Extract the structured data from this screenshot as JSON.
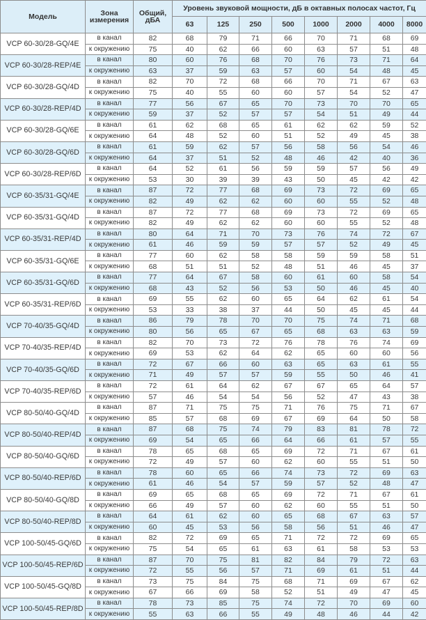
{
  "header": {
    "model": "Модель",
    "zone": "Зона измерения",
    "total": "Общий, дБА",
    "octave_title": "Уровень звуковой мощности, дБ в октавных полосах частот, Гц",
    "frequencies": [
      "63",
      "125",
      "250",
      "500",
      "1000",
      "2000",
      "4000",
      "8000"
    ]
  },
  "zones": {
    "duct": "в канал",
    "env": "к окружению"
  },
  "colors": {
    "header_bg": "#dceef8",
    "shaded_bg": "#dff1fb",
    "border": "#8c8c8c"
  },
  "rows": [
    {
      "model": "VCP 60-30/28-GQ/4E",
      "shaded": false,
      "duct": [
        "82",
        "68",
        "79",
        "71",
        "66",
        "70",
        "71",
        "68",
        "69"
      ],
      "env": [
        "75",
        "40",
        "62",
        "66",
        "60",
        "63",
        "57",
        "51",
        "48"
      ]
    },
    {
      "model": "VCP 60-30/28-REP/4E",
      "shaded": true,
      "duct": [
        "80",
        "60",
        "76",
        "68",
        "70",
        "76",
        "73",
        "71",
        "64"
      ],
      "env": [
        "63",
        "37",
        "59",
        "63",
        "57",
        "60",
        "54",
        "48",
        "45"
      ]
    },
    {
      "model": "VCP 60-30/28-GQ/4D",
      "shaded": false,
      "duct": [
        "82",
        "70",
        "72",
        "68",
        "66",
        "70",
        "71",
        "67",
        "63"
      ],
      "env": [
        "75",
        "40",
        "55",
        "60",
        "60",
        "57",
        "54",
        "52",
        "47"
      ]
    },
    {
      "model": "VCP 60-30/28-REP/4D",
      "shaded": true,
      "duct": [
        "77",
        "56",
        "67",
        "65",
        "70",
        "73",
        "70",
        "70",
        "65"
      ],
      "env": [
        "59",
        "37",
        "52",
        "57",
        "57",
        "54",
        "51",
        "49",
        "44"
      ]
    },
    {
      "model": "VCP 60-30/28-GQ/6E",
      "shaded": false,
      "duct": [
        "61",
        "62",
        "68",
        "65",
        "61",
        "62",
        "62",
        "59",
        "52"
      ],
      "env": [
        "64",
        "48",
        "52",
        "60",
        "51",
        "52",
        "49",
        "45",
        "38"
      ]
    },
    {
      "model": "VCP 60-30/28-GQ/6D",
      "shaded": true,
      "duct": [
        "61",
        "59",
        "62",
        "57",
        "56",
        "58",
        "56",
        "54",
        "46"
      ],
      "env": [
        "64",
        "37",
        "51",
        "52",
        "48",
        "46",
        "42",
        "40",
        "36"
      ]
    },
    {
      "model": "VCP 60-30/28-REP/6D",
      "shaded": false,
      "duct": [
        "64",
        "52",
        "61",
        "56",
        "59",
        "59",
        "57",
        "56",
        "49"
      ],
      "env": [
        "53",
        "30",
        "39",
        "39",
        "43",
        "50",
        "45",
        "42",
        "42"
      ]
    },
    {
      "model": "VCP 60-35/31-GQ/4E",
      "shaded": true,
      "duct": [
        "87",
        "72",
        "77",
        "68",
        "69",
        "73",
        "72",
        "69",
        "65"
      ],
      "env": [
        "82",
        "49",
        "62",
        "62",
        "60",
        "60",
        "55",
        "52",
        "48"
      ]
    },
    {
      "model": "VCP 60-35/31-GQ/4D",
      "shaded": false,
      "duct": [
        "87",
        "72",
        "77",
        "68",
        "69",
        "73",
        "72",
        "69",
        "65"
      ],
      "env": [
        "82",
        "49",
        "62",
        "62",
        "60",
        "60",
        "55",
        "52",
        "48"
      ]
    },
    {
      "model": "VCP 60-35/31-REP/4D",
      "shaded": true,
      "duct": [
        "80",
        "64",
        "71",
        "70",
        "73",
        "76",
        "74",
        "72",
        "67"
      ],
      "env": [
        "61",
        "46",
        "59",
        "59",
        "57",
        "57",
        "52",
        "49",
        "45"
      ]
    },
    {
      "model": "VCP 60-35/31-GQ/6E",
      "shaded": false,
      "duct": [
        "77",
        "60",
        "62",
        "58",
        "58",
        "59",
        "59",
        "58",
        "51"
      ],
      "env": [
        "68",
        "51",
        "51",
        "52",
        "48",
        "51",
        "46",
        "45",
        "37"
      ]
    },
    {
      "model": "VCP 60-35/31-GQ/6D",
      "shaded": true,
      "duct": [
        "77",
        "64",
        "67",
        "58",
        "60",
        "61",
        "60",
        "58",
        "54"
      ],
      "env": [
        "68",
        "43",
        "52",
        "56",
        "53",
        "50",
        "46",
        "45",
        "40"
      ]
    },
    {
      "model": "VCP 60-35/31-REP/6D",
      "shaded": false,
      "duct": [
        "69",
        "55",
        "62",
        "60",
        "65",
        "64",
        "62",
        "61",
        "54"
      ],
      "env": [
        "53",
        "33",
        "38",
        "37",
        "44",
        "50",
        "45",
        "45",
        "44"
      ]
    },
    {
      "model": "VCP 70-40/35-GQ/4D",
      "shaded": true,
      "duct": [
        "86",
        "79",
        "78",
        "70",
        "70",
        "75",
        "74",
        "71",
        "68"
      ],
      "env": [
        "80",
        "56",
        "65",
        "67",
        "65",
        "68",
        "63",
        "63",
        "59"
      ]
    },
    {
      "model": "VCP 70-40/35-REP/4D",
      "shaded": false,
      "duct": [
        "82",
        "70",
        "73",
        "72",
        "76",
        "78",
        "76",
        "74",
        "69"
      ],
      "env": [
        "69",
        "53",
        "62",
        "64",
        "62",
        "65",
        "60",
        "60",
        "56"
      ]
    },
    {
      "model": "VCP 70-40/35-GQ/6D",
      "shaded": true,
      "duct": [
        "72",
        "67",
        "66",
        "60",
        "63",
        "65",
        "63",
        "61",
        "55"
      ],
      "env": [
        "71",
        "49",
        "57",
        "57",
        "59",
        "55",
        "50",
        "46",
        "41"
      ]
    },
    {
      "model": "VCP 70-40/35-REP/6D",
      "shaded": false,
      "duct": [
        "72",
        "61",
        "64",
        "62",
        "67",
        "67",
        "65",
        "64",
        "57"
      ],
      "env": [
        "57",
        "46",
        "54",
        "54",
        "56",
        "52",
        "47",
        "43",
        "38"
      ]
    },
    {
      "model": "VCP 80-50/40-GQ/4D",
      "shaded": false,
      "duct": [
        "87",
        "71",
        "75",
        "75",
        "71",
        "76",
        "75",
        "71",
        "67"
      ],
      "env": [
        "85",
        "57",
        "68",
        "69",
        "67",
        "69",
        "64",
        "50",
        "58"
      ]
    },
    {
      "model": "VCP 80-50/40-REP/4D",
      "shaded": true,
      "duct": [
        "87",
        "68",
        "75",
        "74",
        "79",
        "83",
        "81",
        "78",
        "72"
      ],
      "env": [
        "69",
        "54",
        "65",
        "66",
        "64",
        "66",
        "61",
        "57",
        "55"
      ]
    },
    {
      "model": "VCP 80-50/40-GQ/6D",
      "shaded": false,
      "duct": [
        "78",
        "65",
        "68",
        "65",
        "69",
        "72",
        "71",
        "67",
        "61"
      ],
      "env": [
        "72",
        "49",
        "57",
        "60",
        "62",
        "60",
        "55",
        "51",
        "50"
      ]
    },
    {
      "model": "VCP 80-50/40-REP/6D",
      "shaded": true,
      "duct": [
        "78",
        "60",
        "65",
        "66",
        "74",
        "73",
        "72",
        "69",
        "63"
      ],
      "env": [
        "61",
        "46",
        "54",
        "57",
        "59",
        "57",
        "52",
        "48",
        "47"
      ]
    },
    {
      "model": "VCP 80-50/40-GQ/8D",
      "shaded": false,
      "duct": [
        "69",
        "65",
        "68",
        "65",
        "69",
        "72",
        "71",
        "67",
        "61"
      ],
      "env": [
        "66",
        "49",
        "57",
        "60",
        "62",
        "60",
        "55",
        "51",
        "50"
      ]
    },
    {
      "model": "VCP 80-50/40-REP/8D",
      "shaded": true,
      "duct": [
        "64",
        "61",
        "62",
        "60",
        "65",
        "68",
        "67",
        "63",
        "57"
      ],
      "env": [
        "60",
        "45",
        "53",
        "56",
        "58",
        "56",
        "51",
        "46",
        "47"
      ]
    },
    {
      "model": "VCP 100-50/45-GQ/6D",
      "shaded": false,
      "duct": [
        "82",
        "72",
        "69",
        "65",
        "71",
        "72",
        "72",
        "69",
        "65"
      ],
      "env": [
        "75",
        "54",
        "65",
        "61",
        "63",
        "61",
        "58",
        "53",
        "53"
      ]
    },
    {
      "model": "VCP 100-50/45-REP/6D",
      "shaded": true,
      "duct": [
        "87",
        "70",
        "75",
        "81",
        "82",
        "84",
        "79",
        "72",
        "63"
      ],
      "env": [
        "72",
        "55",
        "56",
        "57",
        "71",
        "69",
        "61",
        "51",
        "44"
      ]
    },
    {
      "model": "VCP 100-50/45-GQ/8D",
      "shaded": false,
      "duct": [
        "73",
        "75",
        "84",
        "75",
        "68",
        "71",
        "69",
        "67",
        "62"
      ],
      "env": [
        "67",
        "66",
        "69",
        "58",
        "52",
        "51",
        "49",
        "47",
        "45"
      ]
    },
    {
      "model": "VCP 100-50/45-REP/8D",
      "shaded": true,
      "duct": [
        "78",
        "73",
        "85",
        "75",
        "74",
        "72",
        "70",
        "69",
        "60"
      ],
      "env": [
        "55",
        "63",
        "66",
        "55",
        "49",
        "48",
        "46",
        "44",
        "42"
      ]
    }
  ]
}
